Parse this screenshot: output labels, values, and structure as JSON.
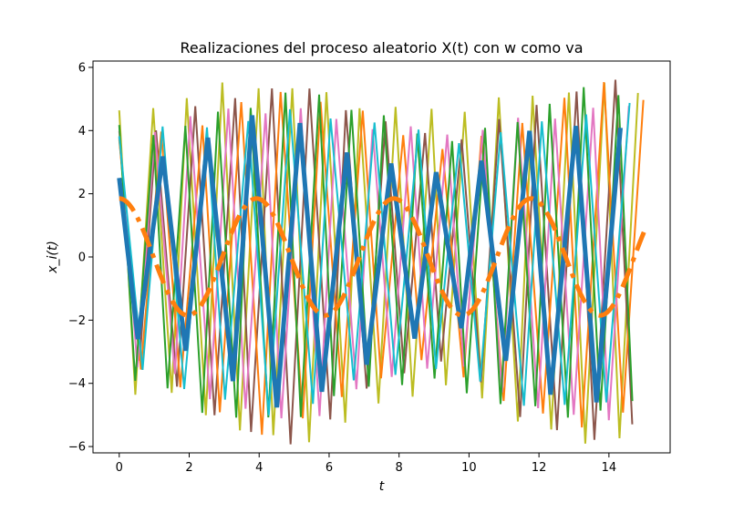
{
  "chart_data": {
    "type": "line",
    "title": "Realizaciones del proceso aleatorio X(t) con w como va",
    "xlabel": "t",
    "ylabel": "x_i(t)",
    "xlim": [
      -0.75,
      15.75
    ],
    "ylim": [
      -6.2,
      6.2
    ],
    "x_ticks": [
      0,
      2,
      4,
      6,
      8,
      10,
      12,
      14
    ],
    "y_ticks": [
      -6,
      -4,
      -2,
      0,
      2,
      4,
      6
    ],
    "x_tick_labels": [
      "0",
      "2",
      "4",
      "6",
      "8",
      "10",
      "12",
      "14"
    ],
    "y_tick_labels": [
      "−6",
      "−4",
      "−2",
      "0",
      "2",
      "4",
      "6"
    ],
    "grid": false,
    "legend": "none",
    "x_range": [
      0,
      15
    ],
    "series": [
      {
        "color": "#bcbd22",
        "style": "thin",
        "envelope_mean": 5.0,
        "envelope_amp": 0.6,
        "freq": 6.6,
        "phase": 0.4
      },
      {
        "color": "#8c564b",
        "style": "thin",
        "envelope_mean": 4.6,
        "envelope_amp": 1.0,
        "freq": 6.0,
        "phase": 1.1
      },
      {
        "color": "#ff7f0e",
        "style": "thin",
        "envelope_mean": 4.4,
        "envelope_amp": 0.9,
        "freq": 5.7,
        "phase": 2.0
      },
      {
        "color": "#e377c2",
        "style": "thin",
        "envelope_mean": 4.3,
        "envelope_amp": 0.6,
        "freq": 6.3,
        "phase": 0.7
      },
      {
        "color": "#2ca02c",
        "style": "thin",
        "envelope_mean": 4.5,
        "envelope_amp": 0.6,
        "freq": 6.9,
        "phase": 2.6
      },
      {
        "color": "#17becf",
        "style": "thin",
        "envelope_mean": 4.2,
        "envelope_amp": 0.5,
        "freq": 5.4,
        "phase": 1.7
      },
      {
        "color": "#1f77b4",
        "style": "thick",
        "envelope_mean": 3.5,
        "envelope_amp": 1.0,
        "freq": 5.0,
        "phase": 0.0
      },
      {
        "color": "#ff7f0e",
        "style": "dashdot",
        "amplitude": 1.85,
        "freq": 1.6,
        "phase": 0.0
      }
    ]
  }
}
